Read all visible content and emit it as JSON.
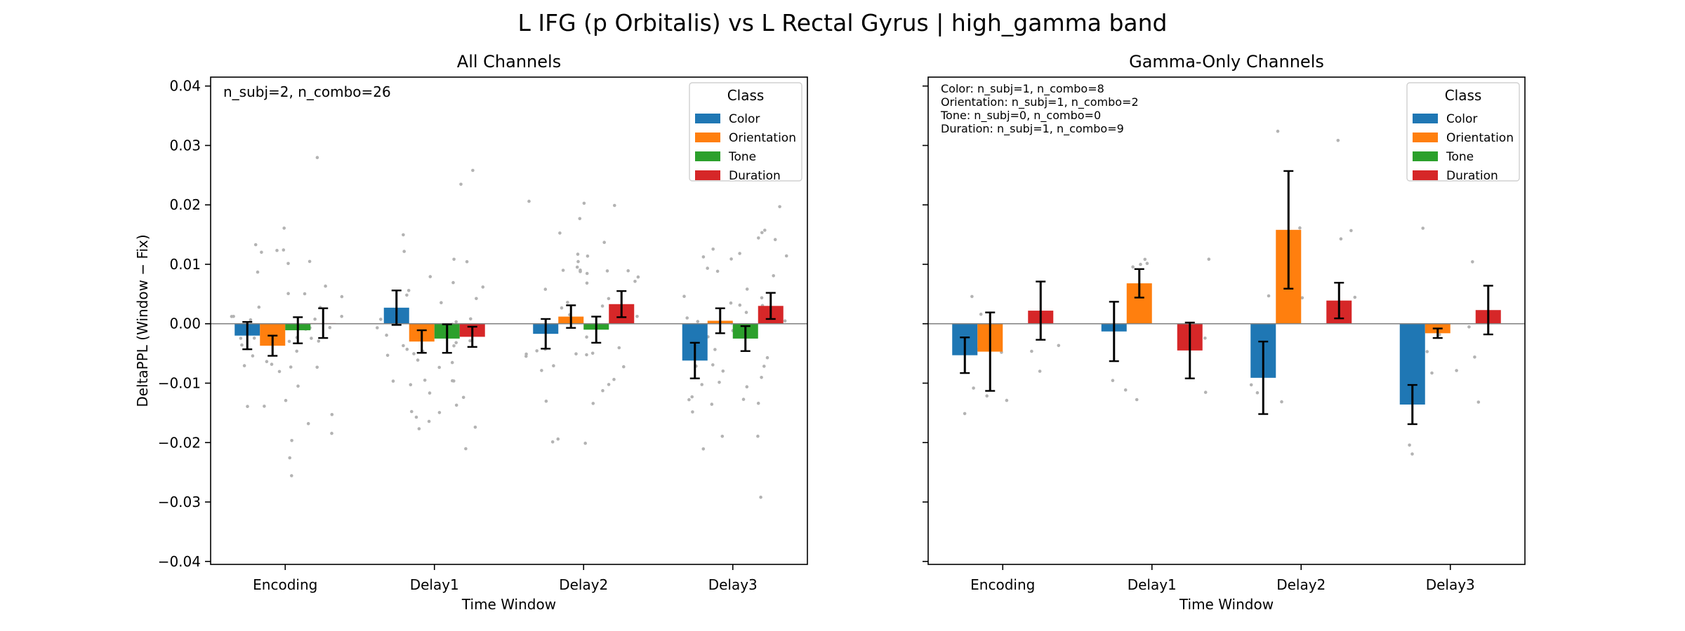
{
  "suptitle": "L IFG (p Orbitalis) vs L Rectal Gyrus  |  high_gamma band",
  "legend_title": "Class",
  "colors": {
    "Color": "#1f77b4",
    "Orientation": "#ff7f0e",
    "Tone": "#2ca02c",
    "Duration": "#d62728",
    "points": "#b3b3b3",
    "zero_line": "#808080"
  },
  "chart_data": [
    {
      "type": "bar",
      "title": "All Channels",
      "xlabel": "Time Window",
      "ylabel": "DeltaPPL (Window − Fix)",
      "ylim": [
        -0.0405,
        0.0415
      ],
      "yticks": [
        0.04,
        0.03,
        0.02,
        0.01,
        0.0,
        -0.01,
        -0.02,
        -0.03,
        -0.04
      ],
      "ytick_labels": [
        "0.04",
        "0.03",
        "0.02",
        "0.01",
        "0.00",
        "−0.01",
        "−0.02",
        "−0.03",
        "−0.04"
      ],
      "categories": [
        "Encoding",
        "Delay1",
        "Delay2",
        "Delay3"
      ],
      "legend_position": "top-right",
      "annotation": [
        "n_subj=2, n_combo=26"
      ],
      "series": [
        {
          "name": "Color",
          "values": [
            -0.002,
            0.0027,
            -0.0017,
            -0.0062
          ],
          "err": [
            0.0023,
            0.0029,
            0.0025,
            0.003
          ]
        },
        {
          "name": "Orientation",
          "values": [
            -0.0037,
            -0.003,
            0.0012,
            0.0005
          ],
          "err": [
            0.0017,
            0.0019,
            0.0019,
            0.0021
          ]
        },
        {
          "name": "Tone",
          "values": [
            -0.0011,
            -0.0025,
            -0.001,
            -0.0025
          ],
          "err": [
            0.0022,
            0.0024,
            0.0022,
            0.0021
          ]
        },
        {
          "name": "Duration",
          "values": [
            0.0001,
            -0.0022,
            0.0033,
            0.003
          ],
          "err": [
            0.0025,
            0.0017,
            0.0022,
            0.0022
          ]
        }
      ]
    },
    {
      "type": "bar",
      "title": "Gamma-Only Channels",
      "xlabel": "Time Window",
      "ylabel": "",
      "ylim": [
        -0.0405,
        0.0415
      ],
      "yticks": [
        0.04,
        0.03,
        0.02,
        0.01,
        0.0,
        -0.01,
        -0.02,
        -0.03,
        -0.04
      ],
      "categories": [
        "Encoding",
        "Delay1",
        "Delay2",
        "Delay3"
      ],
      "legend_position": "top-right",
      "annotation": [
        "Color: n_subj=1, n_combo=8",
        "Orientation: n_subj=1, n_combo=2",
        "Tone: n_subj=0, n_combo=0",
        "Duration: n_subj=1, n_combo=9"
      ],
      "series": [
        {
          "name": "Color",
          "values": [
            -0.0053,
            -0.0013,
            -0.0091,
            -0.0136
          ],
          "err": [
            0.003,
            0.005,
            0.0061,
            0.0033
          ]
        },
        {
          "name": "Orientation",
          "values": [
            -0.0047,
            0.0068,
            0.0158,
            -0.0016
          ],
          "err": [
            0.0066,
            0.0024,
            0.0099,
            0.0008
          ]
        },
        {
          "name": "Tone",
          "values": [
            null,
            null,
            null,
            null
          ],
          "err": [
            null,
            null,
            null,
            null
          ]
        },
        {
          "name": "Duration",
          "values": [
            0.0022,
            -0.0045,
            0.0039,
            0.0023
          ],
          "err": [
            0.0049,
            0.0047,
            0.003,
            0.0041
          ]
        }
      ]
    }
  ]
}
